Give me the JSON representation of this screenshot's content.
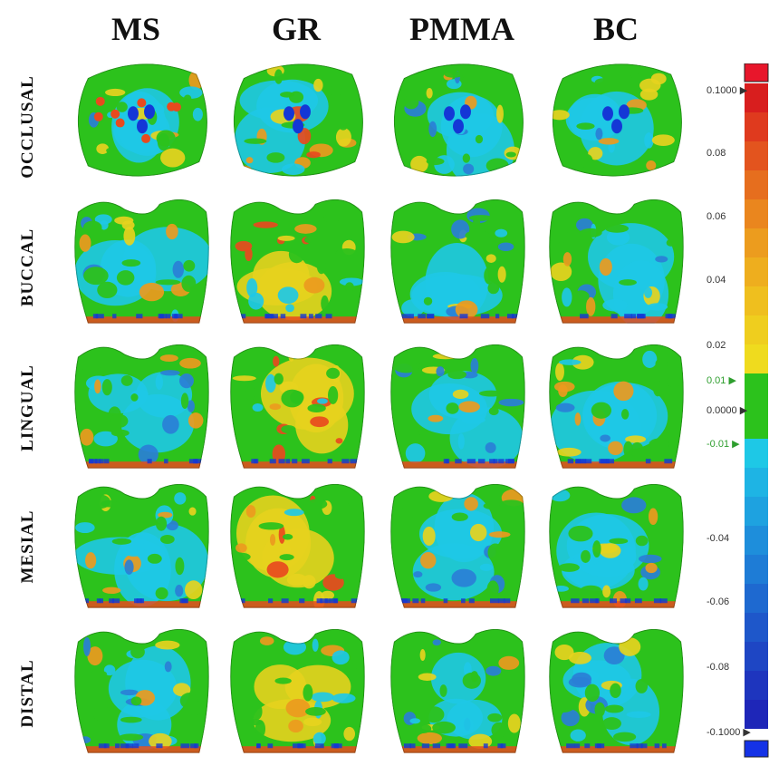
{
  "columns": [
    "MS",
    "GR",
    "PMMA",
    "BC"
  ],
  "rows": [
    "OCCLUSAL",
    "BUCCAL",
    "LINGUAL",
    "MESIAL",
    "DISTAL"
  ],
  "legend": {
    "ticks": [
      {
        "label": "0.1000",
        "marker": true
      },
      {
        "label": "0.08"
      },
      {
        "label": "0.06"
      },
      {
        "label": "0.04"
      },
      {
        "label": "0.02"
      },
      {
        "label": "0.01",
        "green": true,
        "marker": true
      },
      {
        "label": "0.0000",
        "marker": true
      },
      {
        "label": "-0.01",
        "green": true,
        "marker": true
      },
      {
        "label": "-0.04"
      },
      {
        "label": "-0.06"
      },
      {
        "label": "-0.08"
      },
      {
        "label": "-0.1000",
        "marker": true
      }
    ],
    "colors": {
      "max": "#e8162b",
      "min": "#1432e6",
      "green": "#2cc21c",
      "cyan": "#1ec8e6",
      "yellow": "#e6d21e",
      "orange": "#eb9a1e",
      "blue": "#2a7fd6",
      "deep_blue": "#1437d6",
      "red": "#e84a1e"
    }
  }
}
